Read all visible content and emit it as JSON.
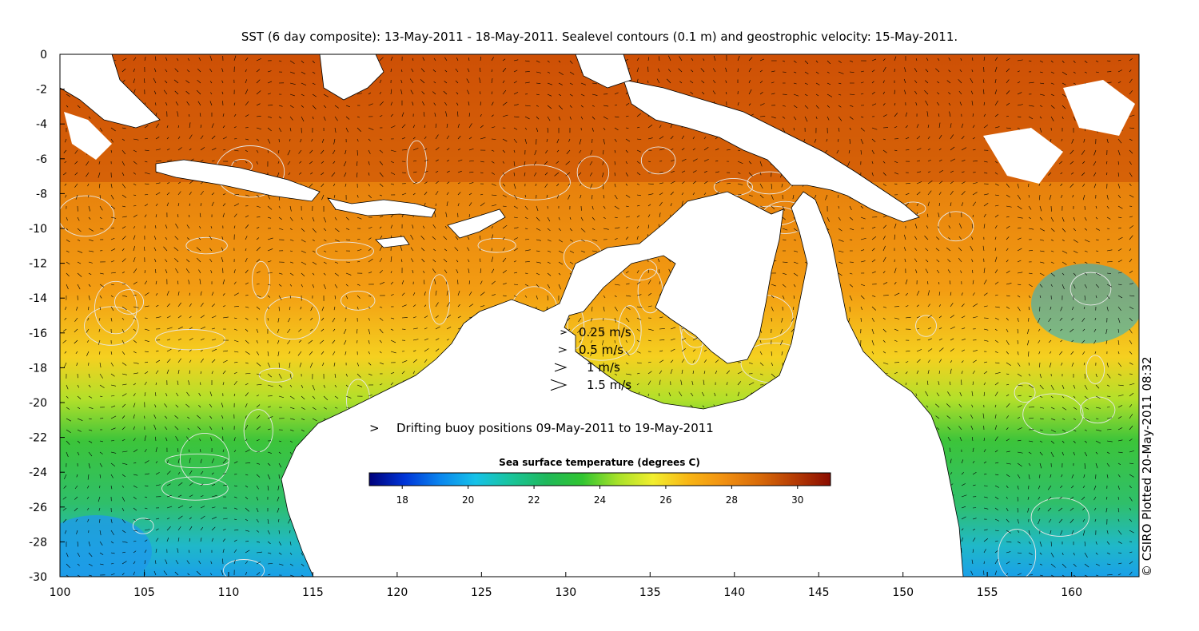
{
  "title": "SST (6 day composite): 13-May-2011 - 18-May-2011. Sealevel contours (0.1 m) and geostrophic velocity: 15-May-2011.",
  "credit": "© CSIRO Plotted 20-May-2011 08:32",
  "axes": {
    "x_ticks": [
      100,
      105,
      110,
      115,
      120,
      125,
      130,
      135,
      140,
      145,
      150,
      155,
      160
    ],
    "y_ticks": [
      0,
      -2,
      -4,
      -6,
      -8,
      -10,
      -12,
      -14,
      -16,
      -18,
      -20,
      -22,
      -24,
      -26,
      -28,
      -30
    ],
    "xlim": [
      100,
      164
    ],
    "ylim": [
      -30,
      0
    ]
  },
  "velocity_legend": [
    {
      "label": "0.25 m/s",
      "speed": 0.25
    },
    {
      "label": "0.5 m/s",
      "speed": 0.5
    },
    {
      "label": "1 m/s",
      "speed": 1
    },
    {
      "label": "1.5 m/s",
      "speed": 1.5
    }
  ],
  "buoy_legend": {
    "symbol": ">",
    "label": "Drifting buoy positions 09-May-2011 to 19-May-2011",
    "color": "#ff00ff"
  },
  "colorbar": {
    "title": "Sea surface temperature (degrees C)",
    "range": [
      17,
      31
    ],
    "ticks": [
      18,
      20,
      22,
      24,
      26,
      28,
      30
    ],
    "colors": [
      "#00007a",
      "#0035d8",
      "#0a86ee",
      "#16c2e8",
      "#19c49a",
      "#1fb85a",
      "#31c531",
      "#a7e129",
      "#f2ee2e",
      "#f8b514",
      "#f19011",
      "#d86a08",
      "#b53b04",
      "#8a0c00"
    ]
  },
  "colors": {
    "land": "#ffffff",
    "contour": "#e8e8e8",
    "arrow": "#000000"
  }
}
